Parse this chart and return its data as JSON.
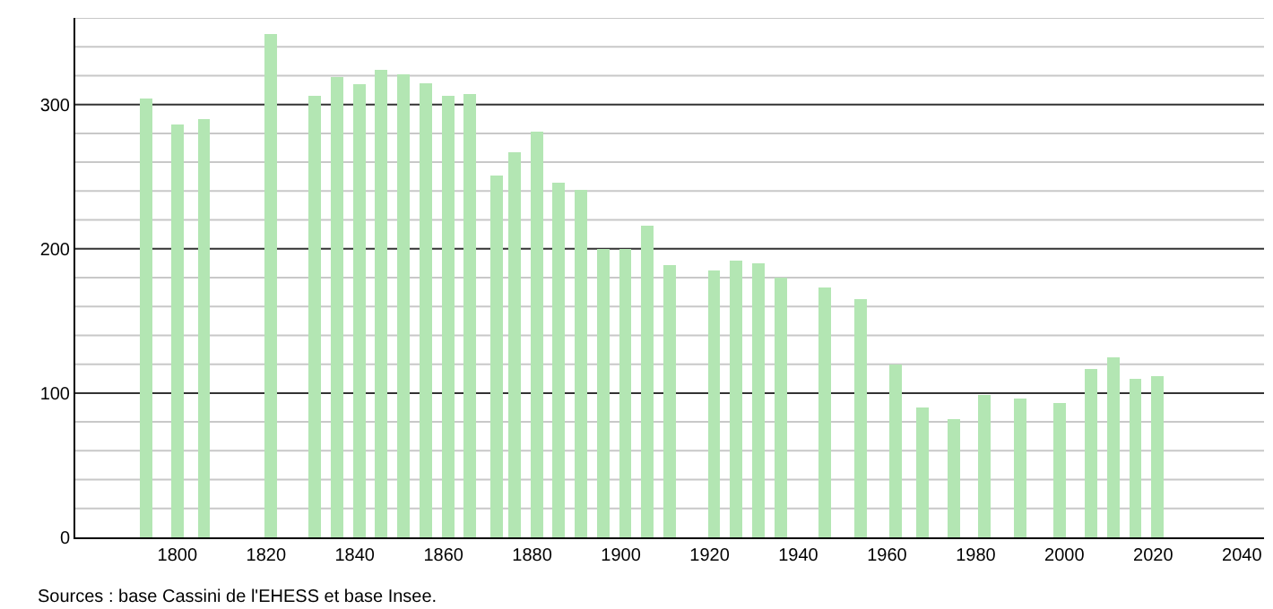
{
  "chart_data": {
    "type": "bar",
    "x": [
      1793,
      1800,
      1806,
      1821,
      1831,
      1836,
      1841,
      1846,
      1851,
      1856,
      1861,
      1866,
      1872,
      1876,
      1881,
      1886,
      1891,
      1896,
      1901,
      1906,
      1911,
      1921,
      1926,
      1931,
      1936,
      1946,
      1954,
      1962,
      1968,
      1975,
      1982,
      1990,
      1999,
      2006,
      2011,
      2016,
      2021
    ],
    "values": [
      304,
      286,
      290,
      349,
      306,
      319,
      314,
      324,
      321,
      315,
      306,
      307,
      251,
      267,
      281,
      246,
      241,
      200,
      200,
      216,
      189,
      185,
      192,
      190,
      180,
      173,
      165,
      120,
      90,
      82,
      99,
      96,
      93,
      117,
      125,
      110,
      112
    ],
    "color": "#b3e6b3",
    "xlim": [
      1777,
      2045
    ],
    "xticks": [
      1800,
      1820,
      1840,
      1860,
      1880,
      1900,
      1920,
      1940,
      1960,
      1980,
      2000,
      2020,
      2040
    ],
    "ylim": [
      0,
      360
    ],
    "yticks": [
      0,
      {
        "value": 20,
        "label": null
      },
      {
        "value": 40,
        "label": null
      },
      {
        "value": 60,
        "label": null
      },
      {
        "value": 80,
        "label": null
      },
      100,
      {
        "value": 120,
        "label": null
      },
      {
        "value": 140,
        "label": null
      },
      {
        "value": 160,
        "label": null
      },
      {
        "value": 180,
        "label": null
      },
      200,
      {
        "value": 220,
        "label": null
      },
      {
        "value": 240,
        "label": null
      },
      {
        "value": 260,
        "label": null
      },
      {
        "value": 280,
        "label": null
      },
      300,
      {
        "value": 320,
        "label": null
      },
      {
        "value": 340,
        "label": null
      },
      {
        "value": 360,
        "label": null
      }
    ],
    "grid": "y",
    "annotations": [
      "Sources : base Cassini de l'EHESS et base Insee."
    ]
  }
}
